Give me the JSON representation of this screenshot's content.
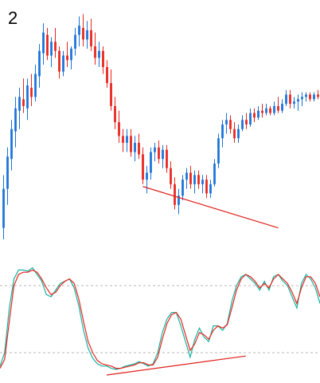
{
  "panel_label": "2",
  "colors": {
    "bull": "#1a73d9",
    "bear": "#e8261e",
    "trendline": "#e0201a",
    "stoch_k": "#17b3a3",
    "stoch_d": "#e8261e",
    "level_line": "#b8b8b8",
    "background": "#ffffff"
  },
  "chart_data": [
    {
      "type": "candlestick",
      "title": "",
      "y_range": [
        0,
        100
      ],
      "trendline": {
        "from": [
          35,
          23
        ],
        "to": [
          69,
          5
        ]
      },
      "candles": [
        {
          "o": 5,
          "h": 28,
          "l": 0,
          "c": 22
        },
        {
          "o": 22,
          "h": 40,
          "l": 15,
          "c": 36
        },
        {
          "o": 35,
          "h": 52,
          "l": 30,
          "c": 48
        },
        {
          "o": 47,
          "h": 62,
          "l": 40,
          "c": 57
        },
        {
          "o": 56,
          "h": 66,
          "l": 48,
          "c": 62
        },
        {
          "o": 61,
          "h": 70,
          "l": 55,
          "c": 58
        },
        {
          "o": 57,
          "h": 70,
          "l": 52,
          "c": 67
        },
        {
          "o": 66,
          "h": 72,
          "l": 58,
          "c": 62
        },
        {
          "o": 62,
          "h": 76,
          "l": 60,
          "c": 72
        },
        {
          "o": 71,
          "h": 85,
          "l": 66,
          "c": 82
        },
        {
          "o": 81,
          "h": 94,
          "l": 76,
          "c": 90
        },
        {
          "o": 89,
          "h": 92,
          "l": 78,
          "c": 80
        },
        {
          "o": 80,
          "h": 88,
          "l": 75,
          "c": 86
        },
        {
          "o": 86,
          "h": 92,
          "l": 79,
          "c": 82
        },
        {
          "o": 82,
          "h": 84,
          "l": 70,
          "c": 73
        },
        {
          "o": 73,
          "h": 82,
          "l": 71,
          "c": 80
        },
        {
          "o": 80,
          "h": 86,
          "l": 75,
          "c": 78
        },
        {
          "o": 78,
          "h": 84,
          "l": 74,
          "c": 83
        },
        {
          "o": 83,
          "h": 92,
          "l": 80,
          "c": 89
        },
        {
          "o": 89,
          "h": 97,
          "l": 84,
          "c": 93
        },
        {
          "o": 92,
          "h": 98,
          "l": 84,
          "c": 87
        },
        {
          "o": 87,
          "h": 95,
          "l": 83,
          "c": 91
        },
        {
          "o": 91,
          "h": 96,
          "l": 82,
          "c": 84
        },
        {
          "o": 84,
          "h": 90,
          "l": 76,
          "c": 79
        },
        {
          "o": 79,
          "h": 86,
          "l": 75,
          "c": 82
        },
        {
          "o": 82,
          "h": 84,
          "l": 72,
          "c": 75
        },
        {
          "o": 75,
          "h": 78,
          "l": 66,
          "c": 68
        },
        {
          "o": 68,
          "h": 74,
          "l": 56,
          "c": 58
        },
        {
          "o": 58,
          "h": 62,
          "l": 48,
          "c": 51
        },
        {
          "o": 51,
          "h": 56,
          "l": 42,
          "c": 45
        },
        {
          "o": 45,
          "h": 48,
          "l": 38,
          "c": 42
        },
        {
          "o": 42,
          "h": 48,
          "l": 38,
          "c": 45
        },
        {
          "o": 45,
          "h": 48,
          "l": 36,
          "c": 38
        },
        {
          "o": 38,
          "h": 45,
          "l": 34,
          "c": 42
        },
        {
          "o": 42,
          "h": 46,
          "l": 35,
          "c": 37
        },
        {
          "o": 37,
          "h": 40,
          "l": 24,
          "c": 26
        },
        {
          "o": 26,
          "h": 32,
          "l": 20,
          "c": 29
        },
        {
          "o": 29,
          "h": 40,
          "l": 26,
          "c": 38
        },
        {
          "o": 38,
          "h": 42,
          "l": 34,
          "c": 40
        },
        {
          "o": 40,
          "h": 43,
          "l": 33,
          "c": 35
        },
        {
          "o": 35,
          "h": 41,
          "l": 31,
          "c": 39
        },
        {
          "o": 39,
          "h": 41,
          "l": 29,
          "c": 31
        },
        {
          "o": 31,
          "h": 34,
          "l": 22,
          "c": 24
        },
        {
          "o": 24,
          "h": 27,
          "l": 13,
          "c": 15
        },
        {
          "o": 15,
          "h": 22,
          "l": 11,
          "c": 19
        },
        {
          "o": 19,
          "h": 28,
          "l": 17,
          "c": 26
        },
        {
          "o": 26,
          "h": 31,
          "l": 22,
          "c": 29
        },
        {
          "o": 29,
          "h": 32,
          "l": 22,
          "c": 24
        },
        {
          "o": 24,
          "h": 30,
          "l": 20,
          "c": 28
        },
        {
          "o": 28,
          "h": 30,
          "l": 22,
          "c": 24
        },
        {
          "o": 24,
          "h": 28,
          "l": 20,
          "c": 26
        },
        {
          "o": 26,
          "h": 28,
          "l": 18,
          "c": 20
        },
        {
          "o": 20,
          "h": 26,
          "l": 18,
          "c": 24
        },
        {
          "o": 24,
          "h": 35,
          "l": 23,
          "c": 33
        },
        {
          "o": 33,
          "h": 46,
          "l": 31,
          "c": 44
        },
        {
          "o": 44,
          "h": 52,
          "l": 40,
          "c": 50
        },
        {
          "o": 50,
          "h": 55,
          "l": 46,
          "c": 52
        },
        {
          "o": 52,
          "h": 54,
          "l": 46,
          "c": 48
        },
        {
          "o": 48,
          "h": 51,
          "l": 42,
          "c": 44
        },
        {
          "o": 44,
          "h": 50,
          "l": 42,
          "c": 48
        },
        {
          "o": 48,
          "h": 54,
          "l": 47,
          "c": 52
        },
        {
          "o": 52,
          "h": 55,
          "l": 48,
          "c": 50
        },
        {
          "o": 50,
          "h": 57,
          "l": 49,
          "c": 55
        },
        {
          "o": 55,
          "h": 57,
          "l": 51,
          "c": 53
        },
        {
          "o": 53,
          "h": 58,
          "l": 52,
          "c": 56
        },
        {
          "o": 56,
          "h": 59,
          "l": 53,
          "c": 55
        },
        {
          "o": 55,
          "h": 59,
          "l": 54,
          "c": 57
        },
        {
          "o": 57,
          "h": 58,
          "l": 54,
          "c": 55
        },
        {
          "o": 55,
          "h": 60,
          "l": 54,
          "c": 58
        },
        {
          "o": 58,
          "h": 62,
          "l": 55,
          "c": 56
        },
        {
          "o": 56,
          "h": 61,
          "l": 55,
          "c": 59
        },
        {
          "o": 59,
          "h": 65,
          "l": 58,
          "c": 63
        },
        {
          "o": 63,
          "h": 65,
          "l": 57,
          "c": 59
        },
        {
          "o": 59,
          "h": 62,
          "l": 57,
          "c": 60
        },
        {
          "o": 60,
          "h": 63,
          "l": 56,
          "c": 61
        },
        {
          "o": 61,
          "h": 64,
          "l": 58,
          "c": 62
        },
        {
          "o": 62,
          "h": 64,
          "l": 60,
          "c": 63
        },
        {
          "o": 63,
          "h": 64,
          "l": 60,
          "c": 61
        },
        {
          "o": 61,
          "h": 64,
          "l": 60,
          "c": 63
        },
        {
          "o": 63,
          "h": 65,
          "l": 61,
          "c": 62
        }
      ]
    },
    {
      "type": "line",
      "title": "",
      "y_range": [
        0,
        100
      ],
      "levels": [
        80,
        20
      ],
      "trendline": {
        "from": [
          23,
          0
        ],
        "to": [
          53,
          17
        ]
      },
      "series": [
        {
          "key": "k",
          "values": [
            8,
            20,
            60,
            86,
            94,
            94,
            93,
            96,
            90,
            84,
            72,
            70,
            76,
            82,
            84,
            86,
            78,
            62,
            40,
            24,
            15,
            10,
            8,
            8,
            6,
            5,
            6,
            8,
            9,
            10,
            12,
            10,
            8,
            10,
            20,
            38,
            50,
            56,
            56,
            44,
            30,
            16,
            32,
            42,
            34,
            30,
            44,
            44,
            40,
            46,
            66,
            80,
            88,
            90,
            86,
            82,
            76,
            84,
            76,
            88,
            90,
            84,
            80,
            70,
            60,
            82,
            90,
            86,
            78,
            64
          ]
        },
        {
          "key": "d",
          "values": [
            6,
            14,
            48,
            80,
            90,
            92,
            92,
            94,
            92,
            86,
            78,
            72,
            74,
            80,
            84,
            86,
            82,
            68,
            48,
            30,
            20,
            13,
            10,
            9,
            8,
            6,
            6,
            7,
            8,
            9,
            11,
            11,
            9,
            9,
            16,
            32,
            46,
            54,
            56,
            50,
            36,
            22,
            28,
            38,
            36,
            32,
            40,
            44,
            42,
            45,
            60,
            76,
            86,
            90,
            88,
            84,
            78,
            82,
            78,
            86,
            90,
            86,
            82,
            74,
            64,
            78,
            88,
            88,
            82,
            70
          ]
        }
      ]
    }
  ]
}
